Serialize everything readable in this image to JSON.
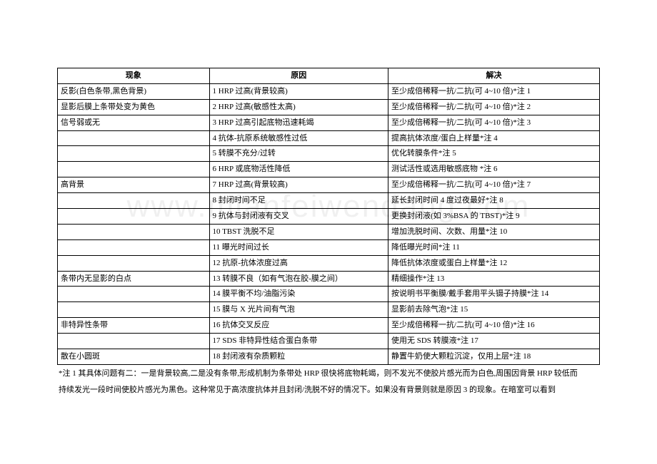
{
  "watermark": "www.mianfeiwendang.com",
  "table": {
    "headers": [
      "现象",
      "原因",
      "解决"
    ],
    "col_widths_pct": [
      28,
      33,
      39
    ],
    "rows": [
      [
        "反影(白色条带,黑色背景)",
        "1 HRP 过高(背景较高)",
        "至少成倍稀释一抗/二抗(可 4~10 倍)*注 1"
      ],
      [
        "显影后膜上条带处变为黄色",
        "2 HRP 过高(敏感性太高)",
        "至少成倍稀释一抗/二抗(可 4~10 倍)*注 2"
      ],
      [
        "信号弱或无",
        "3 HRP 过高引起底物迅速耗竭",
        "至少成倍稀释一抗/二抗(可 4~10 倍)*注 3"
      ],
      [
        "",
        "4 抗体-抗原系统敏感性过低",
        "提高抗体浓度/蛋白上样量*注 4"
      ],
      [
        "",
        "5 转膜不充分/过转",
        "优化转膜条件*注 5"
      ],
      [
        "",
        "6 HRP 或底物活性降低",
        "测试活性或选用敏感底物 *注 6"
      ],
      [
        "高背景",
        "7 HRP 过高(背景较高)",
        "至少成倍稀释一抗/二抗(可 4~10 倍)*注 7"
      ],
      [
        "",
        "8 封闭时间不足",
        "延长封闭时间 4 度过夜最好*注 8"
      ],
      [
        "",
        "9 抗体与封闭液有交叉",
        "更换封闭液(如 3%BSA 的 TBST)*注 9"
      ],
      [
        "",
        "10 TBST 洗脱不足",
        "增加洗脱时间、次数、用量*注 10"
      ],
      [
        "",
        "11 曝光时间过长",
        "降低曝光时间*注 11"
      ],
      [
        "",
        "12 抗原-抗体浓度过高",
        "降低抗体浓度或蛋白上样量*注 12"
      ],
      [
        "条带内无显影的白点",
        "13 转膜不良（如有气泡在胶-膜之间）",
        "精细操作*注 13"
      ],
      [
        "",
        "14 膜平衡不均/油脂污染",
        "按说明书平衡膜/戴手套用平头镊子持膜*注 14"
      ],
      [
        "",
        "15 膜与 X 光片间有气泡",
        "显影前去除气泡*注 15"
      ],
      [
        "非特异性条带",
        "16 抗体交叉反应",
        "至少成倍稀释一抗/二抗(可 4~10 倍)*注 16"
      ],
      [
        "",
        "17 SDS 非特异性结合蛋白条带",
        "使用无 SDS 转膜液*注 17"
      ],
      [
        "散在小圆斑",
        "18 封闭液有杂质颗粒",
        "静置牛奶使大颗粒沉淀，仅用上层*注 18"
      ]
    ]
  },
  "footnote": {
    "line1": "*注 1 其具体问题有二：一是背景较高,二是没有条带,形成机制为条带处 HRP 很快将底物耗竭，则不发光不使胶片感光而为白色,周围因背景 HRP 较低而",
    "line2": "持续发光一段时间使胶片感光为黑色。这种常见于高浓度抗体并且封闭/洗脱不好的情况下。如果没有背景则就是原因 3 的现象。在暗室可以看到"
  }
}
